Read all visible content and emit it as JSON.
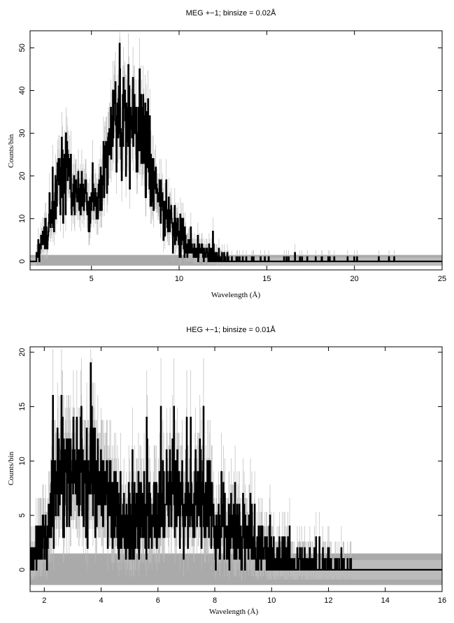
{
  "chart_data": [
    {
      "type": "histogram",
      "title": "MEG +−1; binsize = 0.02Å",
      "xlabel": "Wavelength (Å)",
      "ylabel": "Counts/bin",
      "xlim": [
        1.5,
        25
      ],
      "ylim": [
        -2,
        54
      ],
      "xticks": [
        5,
        10,
        15,
        20,
        25
      ],
      "yticks": [
        0,
        10,
        20,
        30,
        40,
        50
      ],
      "grid": false,
      "legend": "none",
      "series_color": "#000000",
      "error_color": "#bbbbbb",
      "background_band_color": "#aaaaaa",
      "background_band": [
        -1,
        1.5
      ],
      "envelope": [
        [
          1.5,
          0
        ],
        [
          1.8,
          0
        ],
        [
          2.0,
          2
        ],
        [
          2.3,
          5
        ],
        [
          2.6,
          9
        ],
        [
          2.9,
          14
        ],
        [
          3.2,
          19
        ],
        [
          3.5,
          21
        ],
        [
          3.8,
          20
        ],
        [
          4.1,
          17
        ],
        [
          4.4,
          15
        ],
        [
          4.8,
          14
        ],
        [
          5.2,
          13
        ],
        [
          5.6,
          17
        ],
        [
          5.9,
          25
        ],
        [
          6.2,
          30
        ],
        [
          6.5,
          33
        ],
        [
          6.8,
          34
        ],
        [
          7.1,
          35
        ],
        [
          7.4,
          33
        ],
        [
          7.7,
          30
        ],
        [
          8.0,
          26
        ],
        [
          8.3,
          22
        ],
        [
          8.6,
          18
        ],
        [
          9.0,
          14
        ],
        [
          9.4,
          10
        ],
        [
          9.8,
          7
        ],
        [
          10.2,
          5
        ],
        [
          10.6,
          3.5
        ],
        [
          11.0,
          2.5
        ],
        [
          11.5,
          1.5
        ],
        [
          12.0,
          1
        ],
        [
          12.5,
          0.6
        ],
        [
          13.0,
          0.3
        ],
        [
          14.0,
          0.1
        ],
        [
          16.0,
          0.05
        ],
        [
          25.0,
          0
        ]
      ],
      "peaks": [
        {
          "x": 3.6,
          "y": 28
        },
        {
          "x": 7.1,
          "y": 46
        },
        {
          "x": 6.3,
          "y": 40
        }
      ]
    },
    {
      "type": "histogram",
      "title": "HEG +−1; binsize = 0.01Å",
      "xlabel": "Wavelength (Å)",
      "ylabel": "Counts/bin",
      "xlim": [
        1.5,
        16
      ],
      "ylim": [
        -2,
        20.5
      ],
      "xticks": [
        2,
        4,
        6,
        8,
        10,
        12,
        14,
        16
      ],
      "yticks": [
        0,
        5,
        10,
        15,
        20
      ],
      "grid": false,
      "legend": "none",
      "series_color": "#000000",
      "error_color": "#bbbbbb",
      "background_band_color": "#aaaaaa",
      "background_band": [
        -1.4,
        1.5
      ],
      "envelope": [
        [
          1.5,
          0.5
        ],
        [
          1.8,
          2
        ],
        [
          2.1,
          5
        ],
        [
          2.4,
          7
        ],
        [
          2.7,
          8.5
        ],
        [
          3.0,
          9
        ],
        [
          3.3,
          9
        ],
        [
          3.6,
          8.5
        ],
        [
          3.9,
          8
        ],
        [
          4.2,
          7
        ],
        [
          4.5,
          5
        ],
        [
          4.8,
          4
        ],
        [
          5.1,
          4
        ],
        [
          5.4,
          4.5
        ],
        [
          5.8,
          5.5
        ],
        [
          6.2,
          6.5
        ],
        [
          6.6,
          7
        ],
        [
          7.0,
          7
        ],
        [
          7.4,
          6.5
        ],
        [
          7.8,
          5.5
        ],
        [
          8.2,
          4.5
        ],
        [
          8.6,
          3.5
        ],
        [
          9.0,
          3
        ],
        [
          9.4,
          2
        ],
        [
          9.8,
          1.5
        ],
        [
          10.2,
          1
        ],
        [
          10.8,
          0.7
        ],
        [
          11.5,
          0.5
        ],
        [
          12.2,
          0.3
        ],
        [
          12.8,
          0.2
        ],
        [
          13.0,
          0
        ],
        [
          16.0,
          0
        ]
      ],
      "peaks": [
        {
          "x": 2.3,
          "y": 16
        },
        {
          "x": 6.1,
          "y": 15
        },
        {
          "x": 7.6,
          "y": 15
        },
        {
          "x": 3.3,
          "y": 15
        }
      ]
    }
  ]
}
